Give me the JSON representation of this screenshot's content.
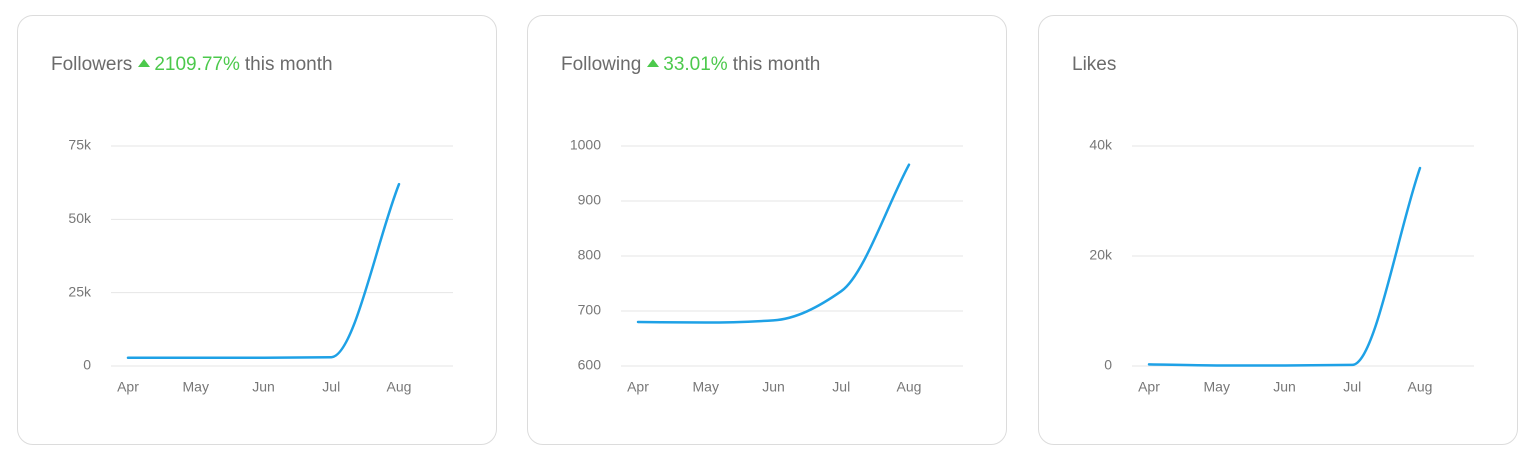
{
  "chart_data": [
    {
      "type": "line",
      "title": "Followers",
      "change": "2109.77%",
      "change_suffix": "this month",
      "categories": [
        "Apr",
        "May",
        "Jun",
        "Jul",
        "Aug"
      ],
      "series": [
        {
          "color": "#1ea1e6",
          "values": [
            2800,
            2800,
            2800,
            3000,
            62000
          ]
        }
      ],
      "ylim": [
        0,
        75000
      ],
      "yticks": [
        0,
        {
          "value": 25000,
          "label": "25k"
        },
        {
          "value": 50000,
          "label": "50k"
        },
        {
          "value": 75000,
          "label": "75k"
        }
      ],
      "grid": true
    },
    {
      "type": "line",
      "title": "Following",
      "change": "33.01%",
      "change_suffix": "this month",
      "categories": [
        "Apr",
        "May",
        "Jun",
        "Jul",
        "Aug"
      ],
      "series": [
        {
          "color": "#1ea1e6",
          "values": [
            680,
            679,
            683,
            736,
            966
          ]
        }
      ],
      "ylim": [
        600,
        1000
      ],
      "yticks": [
        600,
        700,
        800,
        900,
        1000
      ],
      "grid": true
    },
    {
      "type": "line",
      "title": "Likes",
      "categories": [
        "Apr",
        "May",
        "Jun",
        "Jul",
        "Aug"
      ],
      "series": [
        {
          "color": "#1ea1e6",
          "values": [
            300,
            100,
            100,
            200,
            36000
          ]
        }
      ],
      "ylim": [
        0,
        40000
      ],
      "yticks": [
        0,
        {
          "value": 20000,
          "label": "20k"
        },
        {
          "value": 40000,
          "label": "40k"
        }
      ],
      "grid": true
    }
  ]
}
